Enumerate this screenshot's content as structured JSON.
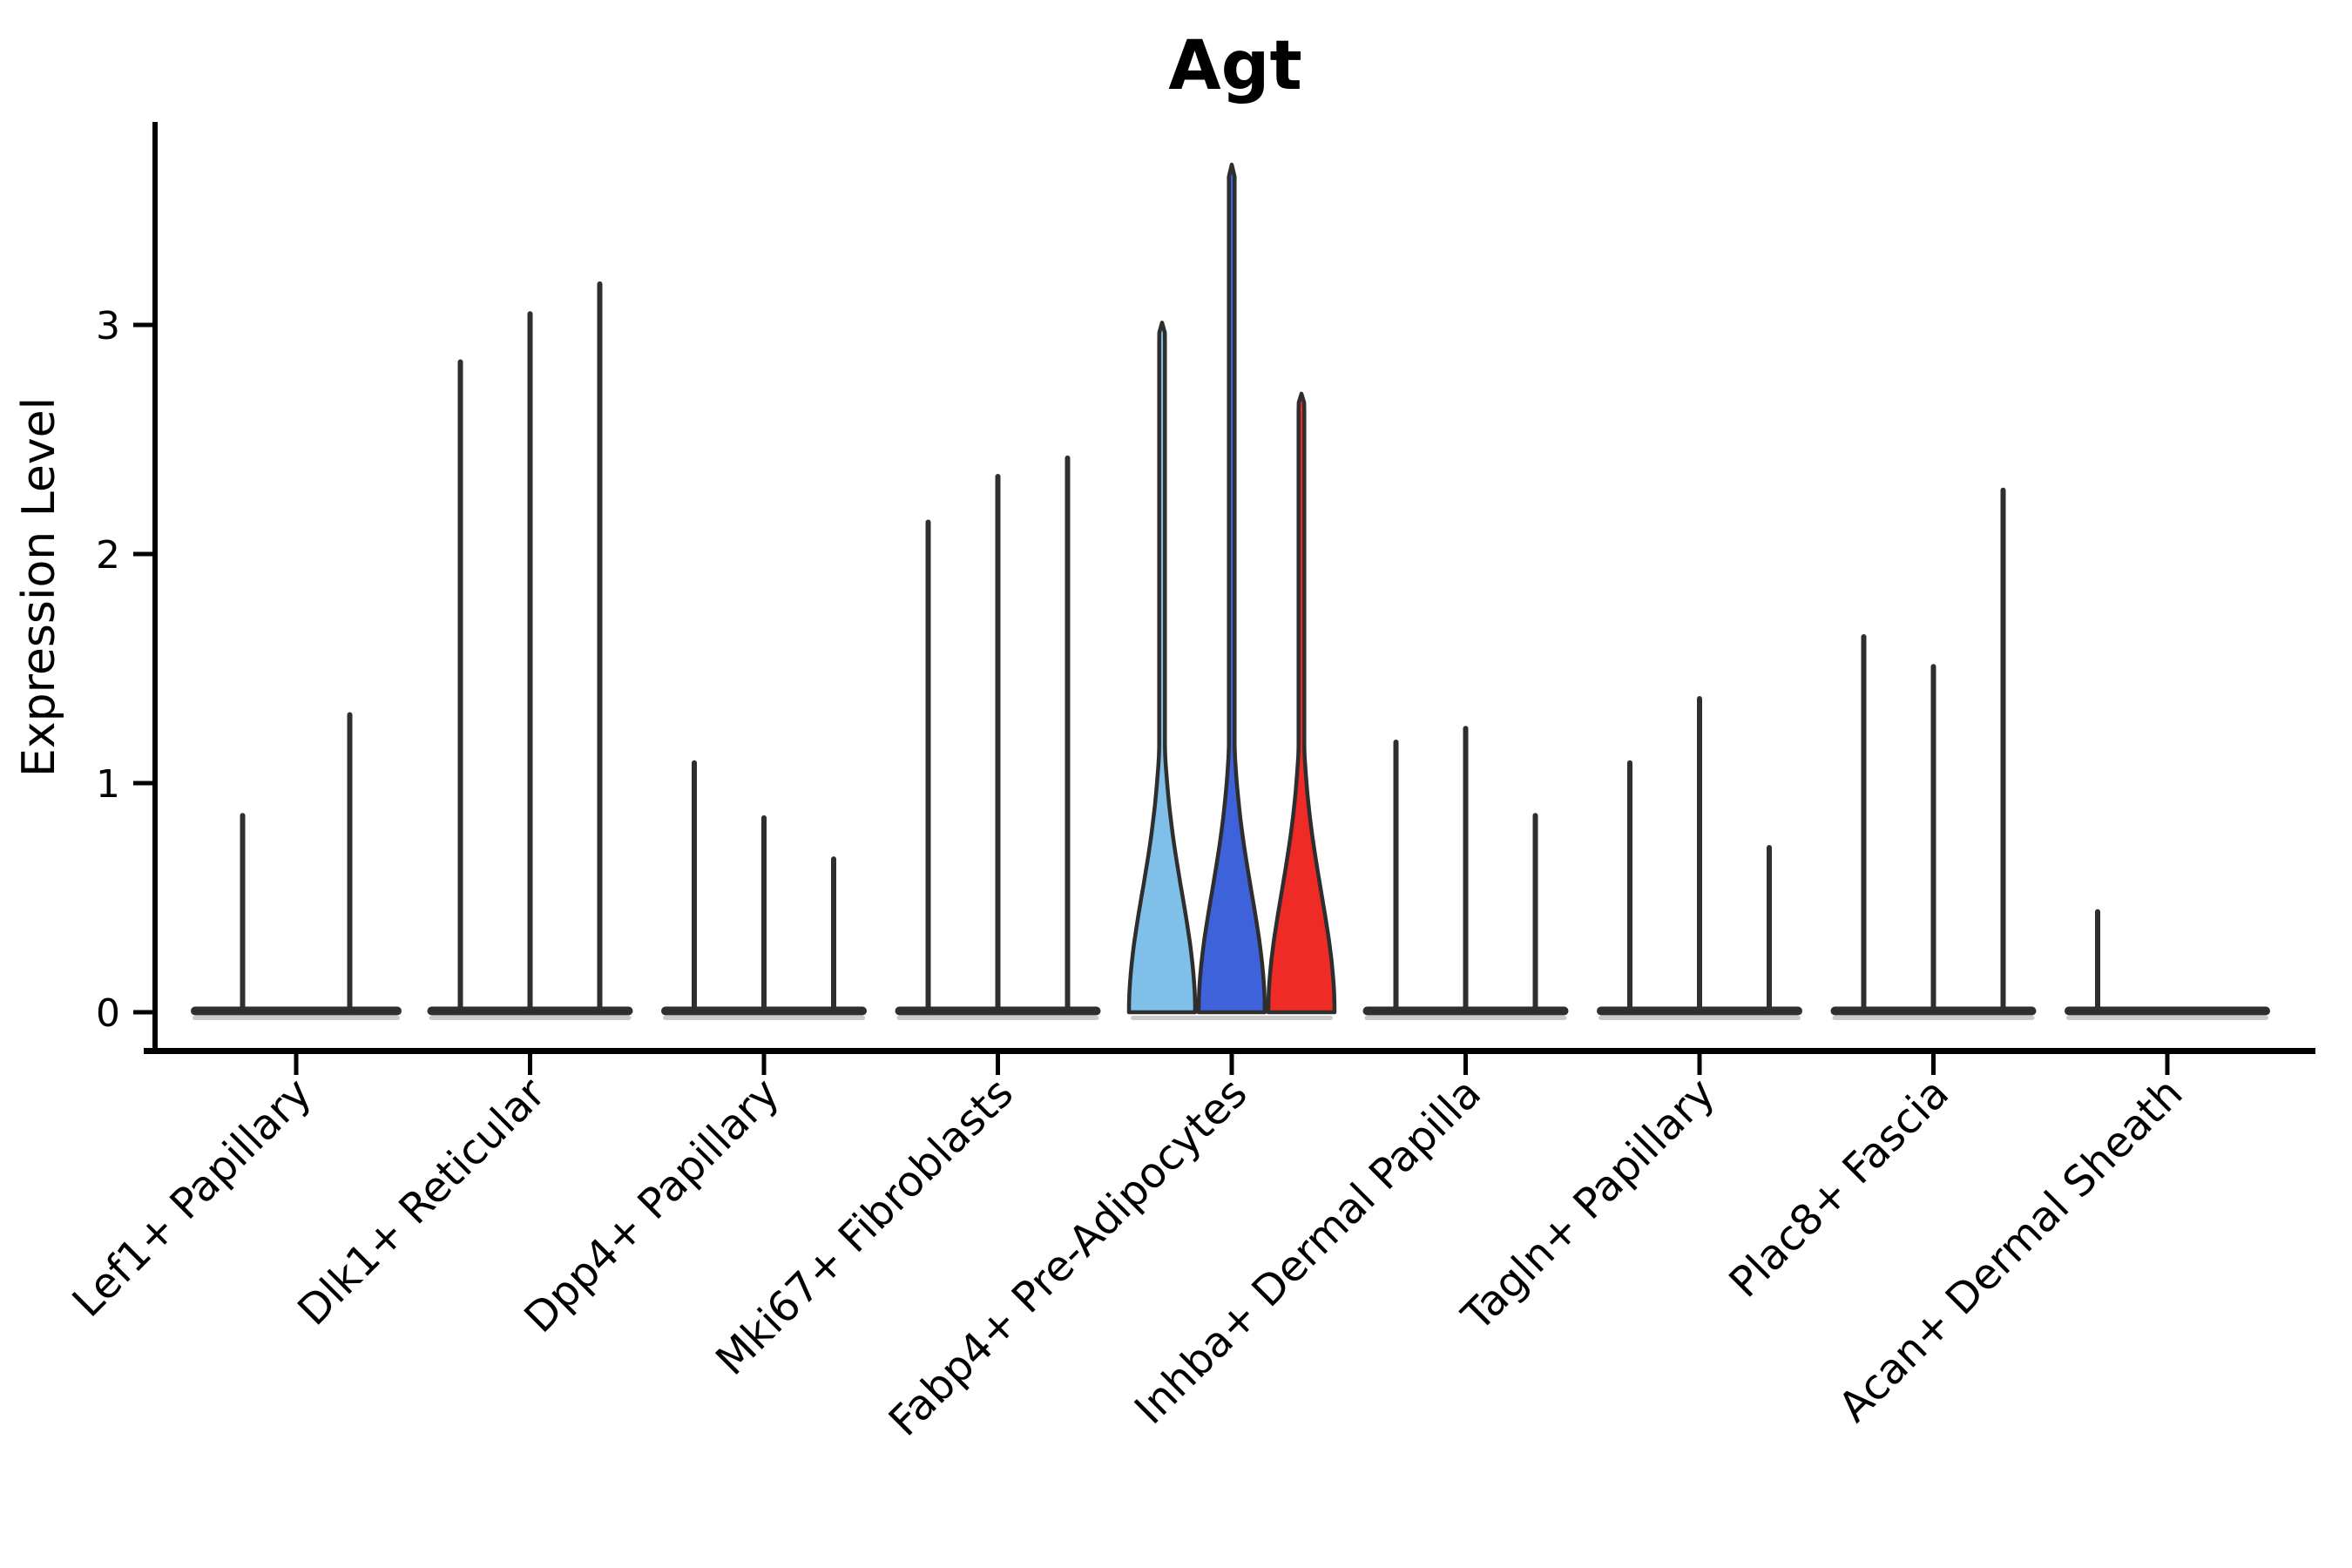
{
  "title": "Agt",
  "y_axis": {
    "label": "Expression Level",
    "ticks": [
      "0",
      "1",
      "2",
      "3"
    ]
  },
  "colors": {
    "spike": "#2f2f2f",
    "outline": "#2e2e2e",
    "shadow": "#c2c2c2",
    "highlight_light_blue": "#80BFE8",
    "highlight_blue": "#3D62DA",
    "highlight_red": "#EE2B26"
  },
  "chart_data": {
    "type": "violin",
    "title": "Agt",
    "xlabel": "",
    "ylabel": "Expression Level",
    "ylim": [
      -0.17,
      3.89
    ],
    "yticks": [
      0,
      1,
      2,
      3
    ],
    "grid": false,
    "legend": "none",
    "categories": [
      "Lef1+ Papillary",
      "Dlk1+ Reticular",
      "Dpp4+ Papillary",
      "Mki67+ Fibroblasts",
      "Fabp4+ Pre-Adipocytes",
      "Inhba+ Dermal Papilla",
      "Tagln+ Papillary",
      "Plac8+ Fascia",
      "Acan+ Dermal Sheath"
    ],
    "groups": [
      {
        "category": "Lef1+ Papillary",
        "violins": [
          {
            "max": 0.87,
            "style": "spike"
          },
          {
            "max": 1.31,
            "style": "spike"
          }
        ]
      },
      {
        "category": "Dlk1+ Reticular",
        "violins": [
          {
            "max": 2.85,
            "style": "spike"
          },
          {
            "max": 3.06,
            "style": "spike"
          },
          {
            "max": 3.19,
            "style": "spike"
          }
        ]
      },
      {
        "category": "Dpp4+ Papillary",
        "violins": [
          {
            "max": 1.1,
            "style": "spike"
          },
          {
            "max": 0.86,
            "style": "spike"
          },
          {
            "max": 0.68,
            "style": "spike"
          }
        ]
      },
      {
        "category": "Mki67+ Fibroblasts",
        "violins": [
          {
            "max": 2.15,
            "style": "spike"
          },
          {
            "max": 2.35,
            "style": "spike"
          },
          {
            "max": 2.43,
            "style": "spike"
          }
        ]
      },
      {
        "category": "Fabp4+ Pre-Adipocytes",
        "violins": [
          {
            "max": 3.01,
            "style": "violin",
            "color": "#80BFE8"
          },
          {
            "max": 3.7,
            "style": "violin",
            "color": "#3D62DA"
          },
          {
            "max": 2.7,
            "style": "violin",
            "color": "#EE2B26"
          }
        ]
      },
      {
        "category": "Inhba+ Dermal Papilla",
        "violins": [
          {
            "max": 1.19,
            "style": "spike"
          },
          {
            "max": 1.25,
            "style": "spike"
          },
          {
            "max": 0.87,
            "style": "spike"
          }
        ]
      },
      {
        "category": "Tagln+ Papillary",
        "violins": [
          {
            "max": 1.1,
            "style": "spike"
          },
          {
            "max": 1.38,
            "style": "spike"
          },
          {
            "max": 0.73,
            "style": "spike"
          }
        ]
      },
      {
        "category": "Plac8+ Fascia",
        "violins": [
          {
            "max": 1.65,
            "style": "spike"
          },
          {
            "max": 1.52,
            "style": "spike"
          },
          {
            "max": 2.29,
            "style": "spike"
          }
        ]
      },
      {
        "category": "Acan+ Dermal Sheath",
        "violins": [
          {
            "max": 0.45,
            "style": "spike"
          },
          {
            "max": 0.0,
            "style": "spike"
          },
          {
            "max": 0.0,
            "style": "spike"
          }
        ]
      }
    ]
  }
}
